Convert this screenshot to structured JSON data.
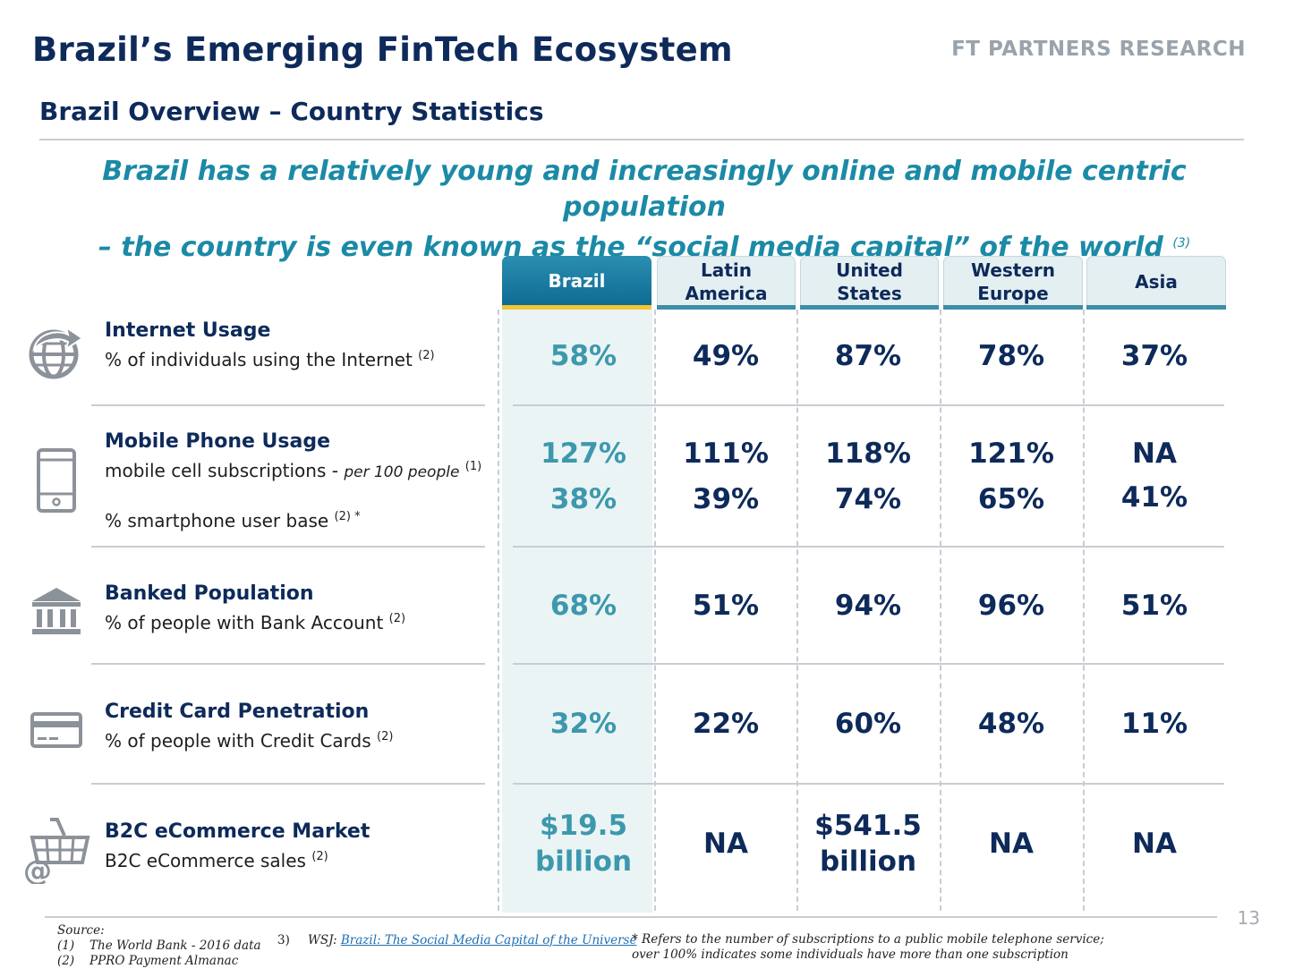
{
  "header": {
    "title": "Brazil’s Emerging FinTech Ecosystem",
    "brand": "FT PARTNERS RESEARCH",
    "subtitle": "Brazil Overview – Country Statistics"
  },
  "headline": {
    "line1": "Brazil has a relatively young and increasingly online and mobile centric population",
    "line2": "– the country is even known as the “social media capital” of the world",
    "ref": "(3)"
  },
  "columns": [
    {
      "line1": "Brazil",
      "line2": ""
    },
    {
      "line1": "Latin",
      "line2": "America"
    },
    {
      "line1": "United",
      "line2": "States"
    },
    {
      "line1": "Western",
      "line2": "Europe"
    },
    {
      "line1": "Asia",
      "line2": ""
    }
  ],
  "rows": {
    "internet": {
      "icon": "globe-arrow-icon",
      "title": "Internet Usage",
      "desc": "% of individuals using the Internet",
      "ref": "(2)",
      "values": [
        "58%",
        "49%",
        "87%",
        "78%",
        "37%"
      ]
    },
    "mobile": {
      "icon": "mobile-phone-icon",
      "title": "Mobile Phone Usage",
      "desc1": "mobile cell subscriptions - ",
      "desc1_italic": "per 100 people",
      "ref1": "(1)",
      "desc2": "% smartphone user base",
      "ref2": "(2) *",
      "values1": [
        "127%",
        "111%",
        "118%",
        "121%",
        "NA"
      ],
      "values2": [
        "38%",
        "39%",
        "74%",
        "65%",
        "41%"
      ]
    },
    "banked": {
      "icon": "bank-building-icon",
      "title": "Banked Population",
      "desc": "% of people with Bank Account",
      "ref": "(2)",
      "values": [
        "68%",
        "51%",
        "94%",
        "96%",
        "51%"
      ]
    },
    "credit": {
      "icon": "credit-card-icon",
      "title": "Credit Card Penetration",
      "desc": "% of people with Credit Cards",
      "ref": "(2)",
      "values": [
        "32%",
        "22%",
        "60%",
        "48%",
        "11%"
      ]
    },
    "ecommerce": {
      "icon": "shopping-basket-at-icon",
      "title": "B2C eCommerce Market",
      "desc": "B2C eCommerce sales",
      "ref": "(2)",
      "values": [
        {
          "l1": "$19.5",
          "l2": "billion"
        },
        {
          "l1": "NA",
          "l2": ""
        },
        {
          "l1": "$541.5",
          "l2": "billion"
        },
        {
          "l1": "NA",
          "l2": ""
        },
        {
          "l1": "NA",
          "l2": ""
        }
      ]
    }
  },
  "footer": {
    "source_label": "Source:",
    "src1_num": "(1)",
    "src1": "The World Bank - 2016 data",
    "src2_num": "(2)",
    "src2": "PPRO Payment Almanac",
    "src3_num": "3)",
    "src3_pub": "WSJ: ",
    "src3_link": "Brazil: The Social Media Capital of the Universe",
    "note_line1": "* Refers to the number of subscriptions to a public mobile telephone service;",
    "note_line2": "over 100% indicates some individuals have more than one subscription",
    "page_number": "13"
  }
}
